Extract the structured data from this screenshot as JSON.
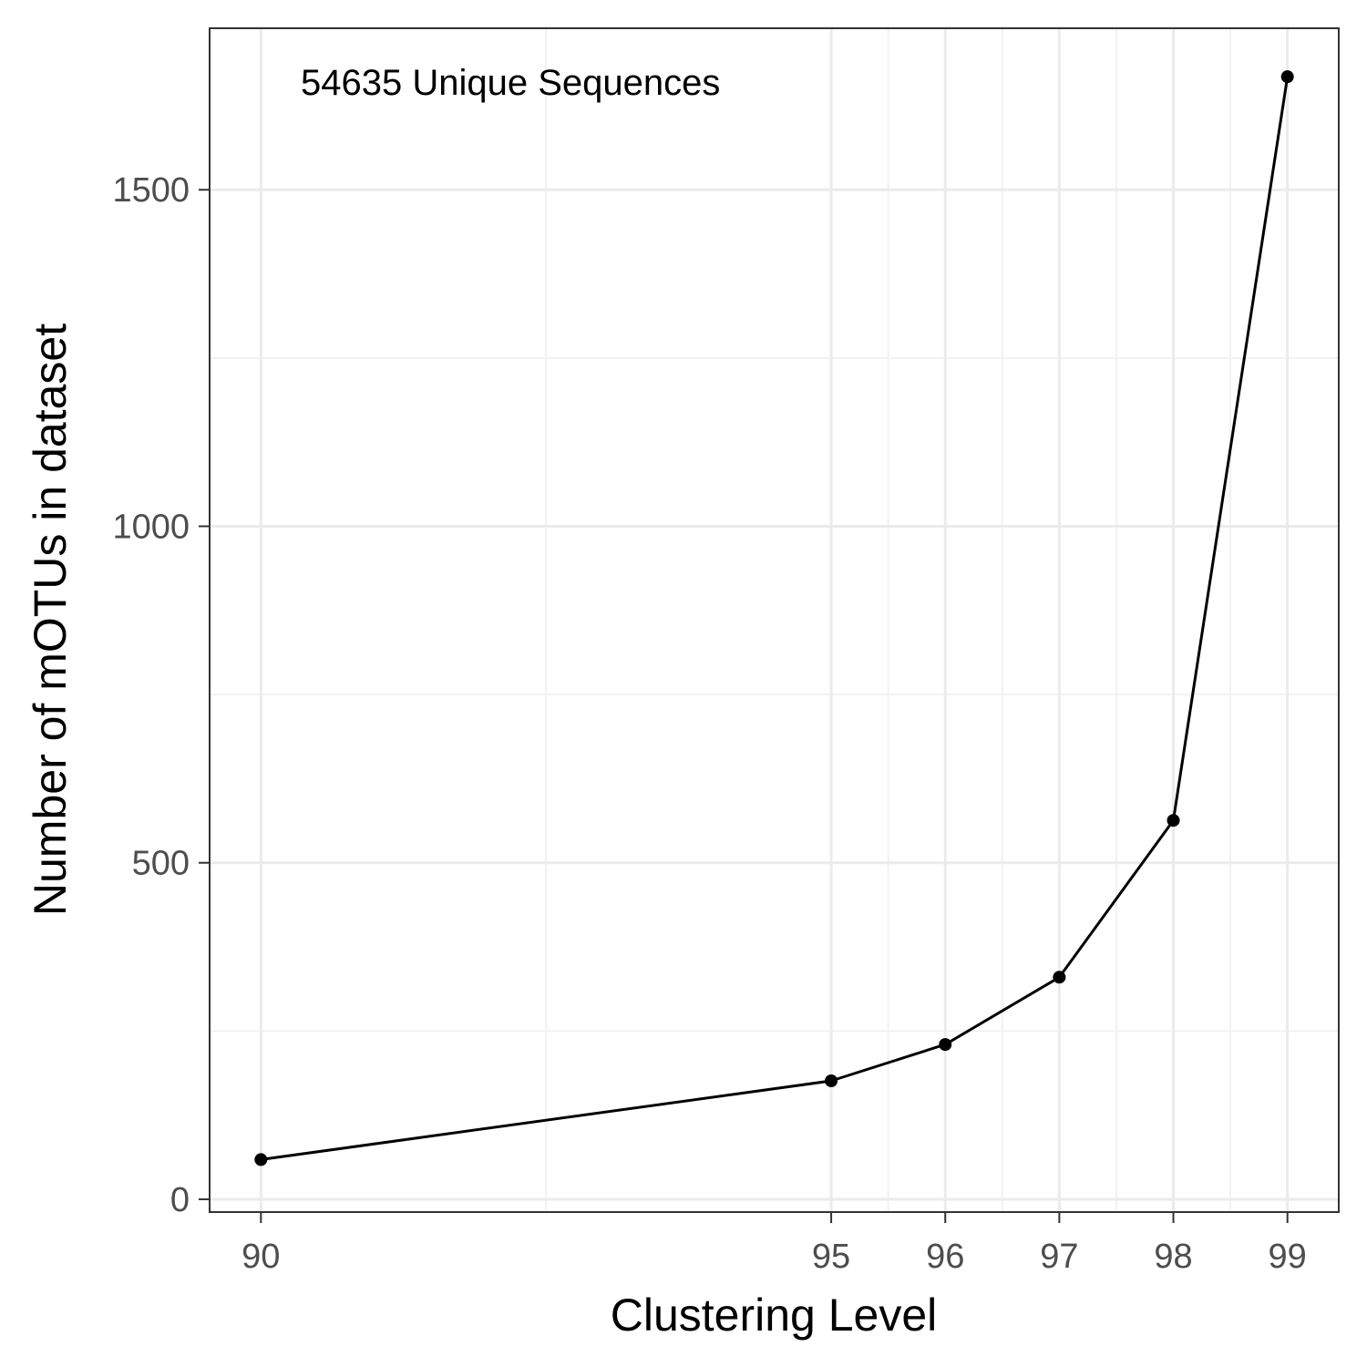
{
  "chart_data": {
    "type": "line",
    "title": "",
    "xlabel": "Clustering Level",
    "ylabel": "Number of mOTUs in dataset",
    "annotation": "54635 Unique Sequences",
    "x": [
      90,
      95,
      96,
      97,
      98,
      99
    ],
    "series": [
      {
        "values": [
          59,
          176,
          230,
          330,
          563,
          1668
        ]
      }
    ],
    "x_ticks": [
      90,
      95,
      96,
      97,
      98,
      99
    ],
    "y_ticks": [
      0,
      500,
      1000,
      1500
    ],
    "xlim": [
      89.55,
      99.45
    ],
    "ylim": [
      -19,
      1740
    ],
    "grid": true,
    "legend": "none",
    "colors": {
      "line": "#000000",
      "points": "#000000",
      "grid_major": "#ebebeb",
      "grid_minor": "#f2f2f2",
      "panel_border": "#333333",
      "tick_text": "#4d4d4d"
    }
  }
}
